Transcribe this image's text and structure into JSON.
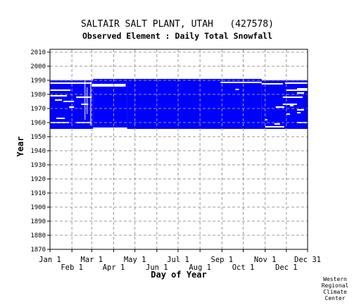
{
  "chart_data": {
    "type": "heatmap",
    "title": "SALTAIR SALT PLANT, UTAH   (427578)",
    "subtitle": "Observed Element : Daily Total Snowfall",
    "xlabel": "Day of Year",
    "ylabel": "Year",
    "xlim": [
      1,
      365
    ],
    "ylim": [
      1870,
      2012
    ],
    "grid": true,
    "legend": "none",
    "x_ticks_top_row": [
      {
        "label": "Jan 1",
        "day": 1
      },
      {
        "label": "Mar 1",
        "day": 60
      },
      {
        "label": "May 1",
        "day": 121
      },
      {
        "label": "Jul 1",
        "day": 182
      },
      {
        "label": "Sep 1",
        "day": 244
      },
      {
        "label": "Nov 1",
        "day": 305
      },
      {
        "label": "Dec 31",
        "day": 365
      }
    ],
    "x_ticks_bottom_row": [
      {
        "label": "Feb 1",
        "day": 32
      },
      {
        "label": "Apr 1",
        "day": 91
      },
      {
        "label": "Jun 1",
        "day": 152
      },
      {
        "label": "Aug 1",
        "day": 213
      },
      {
        "label": "Oct 1",
        "day": 274
      },
      {
        "label": "Dec 1",
        "day": 335
      }
    ],
    "y_ticks": [
      {
        "label": "1870",
        "year": 1870
      },
      {
        "label": "1880",
        "year": 1880
      },
      {
        "label": "1890",
        "year": 1890
      },
      {
        "label": "1900",
        "year": 1900
      },
      {
        "label": "1910",
        "year": 1910
      },
      {
        "label": "1920",
        "year": 1920
      },
      {
        "label": "1930",
        "year": 1930
      },
      {
        "label": "1940",
        "year": 1940
      },
      {
        "label": "1950",
        "year": 1950
      },
      {
        "label": "1960",
        "year": 1960
      },
      {
        "label": "1970",
        "year": 1970
      },
      {
        "label": "1980",
        "year": 1980
      },
      {
        "label": "1990",
        "year": 1990
      },
      {
        "label": "2000",
        "year": 2000
      },
      {
        "label": "2010",
        "year": 2010
      }
    ],
    "data_color": "#0000ff",
    "grid_color": "#999999",
    "record_blocks": [
      {
        "day_start": 1,
        "day_end": 62,
        "year_start": 1955.5,
        "year_end": 1990
      },
      {
        "day_start": 62,
        "day_end": 110,
        "year_start": 1956.5,
        "year_end": 1991
      },
      {
        "day_start": 110,
        "day_end": 300,
        "year_start": 1955.5,
        "year_end": 1991
      },
      {
        "day_start": 300,
        "day_end": 365,
        "year_start": 1955.5,
        "year_end": 1990
      }
    ],
    "missing_segments": [
      {
        "year": 1988,
        "day_start": 1,
        "day_end": 60
      },
      {
        "year": 1988.5,
        "day_start": 242,
        "day_end": 300
      },
      {
        "year": 1987,
        "day_start": 60,
        "day_end": 108
      },
      {
        "year": 1988,
        "day_start": 333,
        "day_end": 365
      },
      {
        "year": 1987.5,
        "day_start": 300,
        "day_end": 330
      },
      {
        "year": 1986,
        "day_start": 60,
        "day_end": 108
      },
      {
        "year": 1984,
        "day_start": 350,
        "day_end": 365
      },
      {
        "year": 1983,
        "day_start": 1,
        "day_end": 30
      },
      {
        "year": 1983,
        "day_start": 335,
        "day_end": 365
      },
      {
        "year": 1983.5,
        "day_start": 263,
        "day_end": 268
      },
      {
        "year": 1981,
        "day_start": 350,
        "day_end": 360
      },
      {
        "year": 1979,
        "day_start": 1,
        "day_end": 25
      },
      {
        "year": 1978,
        "day_start": 38,
        "day_end": 60
      },
      {
        "year": 1978,
        "day_start": 330,
        "day_end": 358
      },
      {
        "year": 1976,
        "day_start": 8,
        "day_end": 18
      },
      {
        "year": 1975,
        "day_start": 20,
        "day_end": 35
      },
      {
        "year": 1973,
        "day_start": 45,
        "day_end": 55
      },
      {
        "year": 1973,
        "day_start": 330,
        "day_end": 350
      },
      {
        "year": 1972,
        "day_start": 340,
        "day_end": 345
      },
      {
        "year": 1971,
        "day_start": 320,
        "day_end": 332
      },
      {
        "year": 1971,
        "day_start": 28,
        "day_end": 35
      },
      {
        "year": 1969,
        "day_start": 350,
        "day_end": 360
      },
      {
        "year": 1967,
        "day_start": 350,
        "day_end": 355
      },
      {
        "year": 1966,
        "day_start": 335,
        "day_end": 340
      },
      {
        "year": 1963,
        "day_start": 10,
        "day_end": 22
      },
      {
        "year": 1962,
        "day_start": 305,
        "day_end": 308
      },
      {
        "year": 1960,
        "day_start": 1,
        "day_end": 28
      },
      {
        "year": 1960,
        "day_start": 38,
        "day_end": 60
      },
      {
        "year": 1960,
        "day_start": 350,
        "day_end": 365
      },
      {
        "year": 1959,
        "day_start": 318,
        "day_end": 326
      },
      {
        "year": 1957,
        "day_start": 305,
        "day_end": 332
      }
    ],
    "missing_gaps_vertical": [
      {
        "day": 50,
        "year_start": 1962,
        "year_end": 1990
      },
      {
        "day": 53,
        "year_start": 1966,
        "year_end": 1985
      },
      {
        "day": 58,
        "year_start": 1958,
        "year_end": 1989
      }
    ]
  },
  "credit": {
    "line1": "Western",
    "line2": "Regional",
    "line3": "Climate",
    "line4": "Center"
  }
}
